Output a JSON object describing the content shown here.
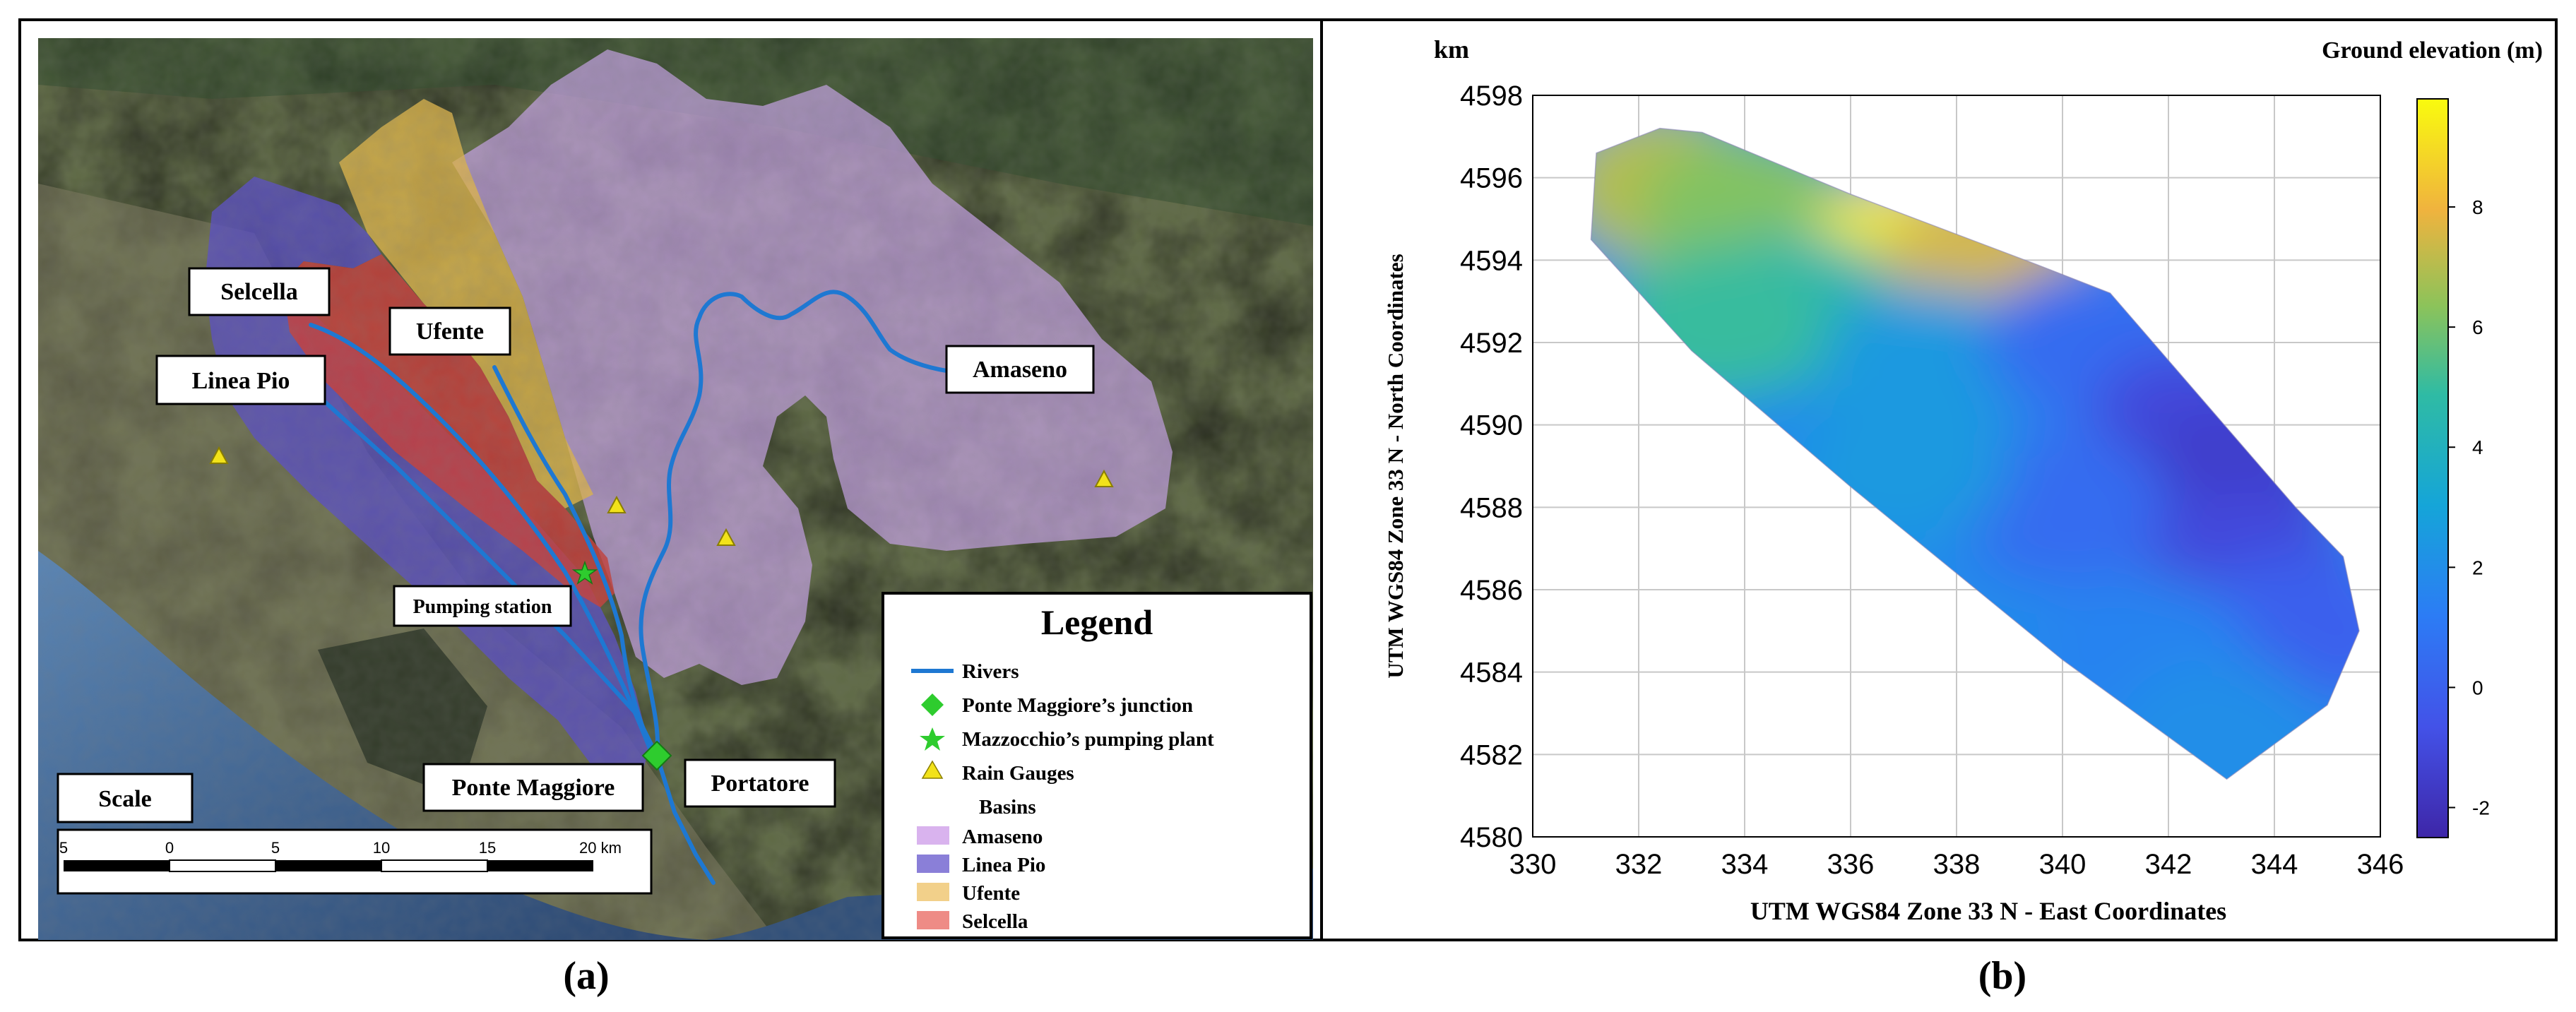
{
  "panel_a": {
    "tag": "(a)",
    "labels": {
      "selcella": "Selcella",
      "ufente": "Ufente",
      "linea_pio": "Linea Pio",
      "amaseno": "Amaseno",
      "pumping_station": "Pumping station",
      "ponte_maggiore": "Ponte Maggiore",
      "portatore": "Portatore",
      "scale": "Scale"
    },
    "scale_bar": {
      "ticks": [
        "5",
        "0",
        "5",
        "10",
        "15",
        "20 km"
      ]
    },
    "legend": {
      "title": "Legend",
      "items": [
        {
          "label": "Rivers",
          "symbol": "line",
          "color": "#1e78d2"
        },
        {
          "label": "Ponte Maggiore’s junction",
          "symbol": "diamond",
          "color": "#2ecc2e"
        },
        {
          "label": "Mazzocchio’s pumping plant",
          "symbol": "star",
          "color": "#2ecc2e"
        },
        {
          "label": "Rain Gauges",
          "symbol": "triangle",
          "color": "#f2e21a"
        }
      ],
      "basins_header": "Basins",
      "basins": [
        {
          "label": "Amaseno",
          "color": "#d9b3ee"
        },
        {
          "label": "Linea Pio",
          "color": "#8a7fd8"
        },
        {
          "label": "Ufente",
          "color": "#f2d08a"
        },
        {
          "label": "Selcella",
          "color": "#ee8b86"
        }
      ]
    }
  },
  "panel_b": {
    "tag": "(b)",
    "chart_data": {
      "type": "heatmap",
      "title": "",
      "unit_label": "km",
      "xlabel": "UTM WGS84 Zone 33 N - East Coordinates",
      "ylabel": "UTM WGS84 Zone 33 N - North Coordinates",
      "xlim": [
        330,
        346
      ],
      "ylim": [
        4580,
        4598
      ],
      "x_ticks": [
        330,
        332,
        334,
        336,
        338,
        340,
        342,
        344,
        346
      ],
      "y_ticks": [
        4580,
        4582,
        4584,
        4586,
        4588,
        4590,
        4592,
        4594,
        4596,
        4598
      ],
      "grid": true,
      "colorbar": {
        "label": "Ground elevation (m)",
        "ticks": [
          -2,
          0,
          2,
          4,
          6,
          8
        ],
        "range": [
          -2.5,
          9.8
        ],
        "colormap": "parula"
      },
      "domain_outline": [
        [
          331.2,
          4596.6
        ],
        [
          332.4,
          4597.2
        ],
        [
          333.2,
          4597.1
        ],
        [
          336.0,
          4595.6
        ],
        [
          339.5,
          4593.9
        ],
        [
          340.9,
          4593.2
        ],
        [
          344.4,
          4588.0
        ],
        [
          345.3,
          4586.8
        ],
        [
          345.6,
          4585.0
        ],
        [
          345.0,
          4583.2
        ],
        [
          343.1,
          4581.4
        ],
        [
          340.0,
          4584.3
        ],
        [
          336.0,
          4588.5
        ],
        [
          333.0,
          4591.8
        ],
        [
          331.1,
          4594.5
        ]
      ],
      "elevation_samples": [
        {
          "x": 332.5,
          "y": 4595.8,
          "z": 7.0
        },
        {
          "x": 334.0,
          "y": 4595.2,
          "z": 6.2
        },
        {
          "x": 337.0,
          "y": 4594.0,
          "z": 9.5
        },
        {
          "x": 338.5,
          "y": 4593.8,
          "z": 7.5
        },
        {
          "x": 335.0,
          "y": 4592.8,
          "z": 4.5
        },
        {
          "x": 333.5,
          "y": 4592.5,
          "z": 5.0
        },
        {
          "x": 337.5,
          "y": 4591.5,
          "z": 2.5
        },
        {
          "x": 340.5,
          "y": 4592.0,
          "z": 0.5
        },
        {
          "x": 342.5,
          "y": 4590.0,
          "z": -1.0
        },
        {
          "x": 343.0,
          "y": 4588.5,
          "z": -1.5
        },
        {
          "x": 340.0,
          "y": 4588.0,
          "z": 0.5
        },
        {
          "x": 337.0,
          "y": 4589.0,
          "z": 2.5
        },
        {
          "x": 343.5,
          "y": 4586.5,
          "z": -1.0
        },
        {
          "x": 344.5,
          "y": 4585.0,
          "z": 0.0
        },
        {
          "x": 341.5,
          "y": 4584.5,
          "z": 1.5
        },
        {
          "x": 343.0,
          "y": 4582.5,
          "z": 2.0
        }
      ]
    }
  }
}
